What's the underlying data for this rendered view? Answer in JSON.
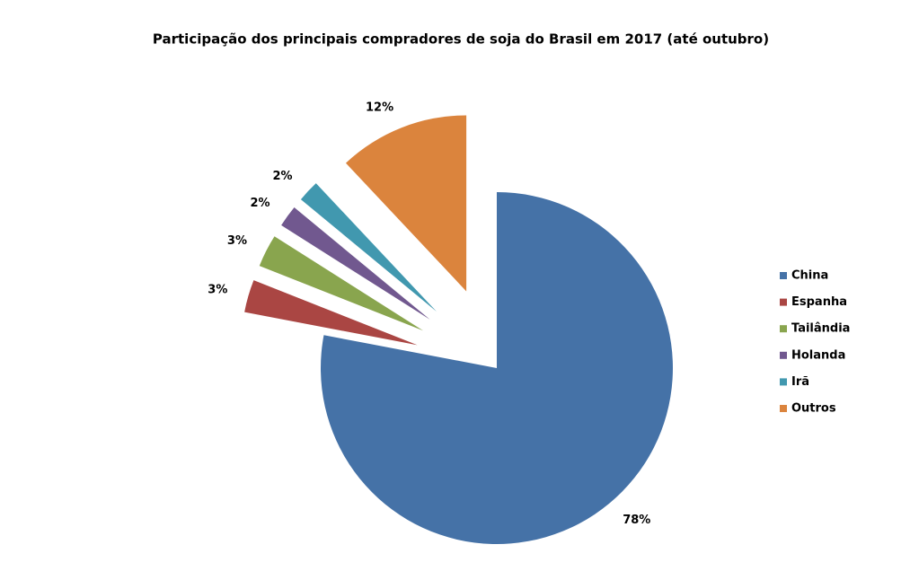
{
  "chart_data": {
    "type": "pie",
    "title": "Participação dos principais compradores de soja do Brasil em 2017 (até outubro)",
    "categories": [
      "China",
      "Espanha",
      "Tailândia",
      "Holanda",
      "Irã",
      "Outros"
    ],
    "values": [
      78,
      3,
      3,
      2,
      2,
      12
    ],
    "value_labels": [
      "78%",
      "3%",
      "3%",
      "2%",
      "2%",
      "12%"
    ],
    "colors": [
      "#4572a7",
      "#aa4643",
      "#89a54e",
      "#71588f",
      "#4198af",
      "#db843d"
    ],
    "exploded": [
      false,
      true,
      true,
      true,
      true,
      true
    ],
    "legend": "right"
  }
}
